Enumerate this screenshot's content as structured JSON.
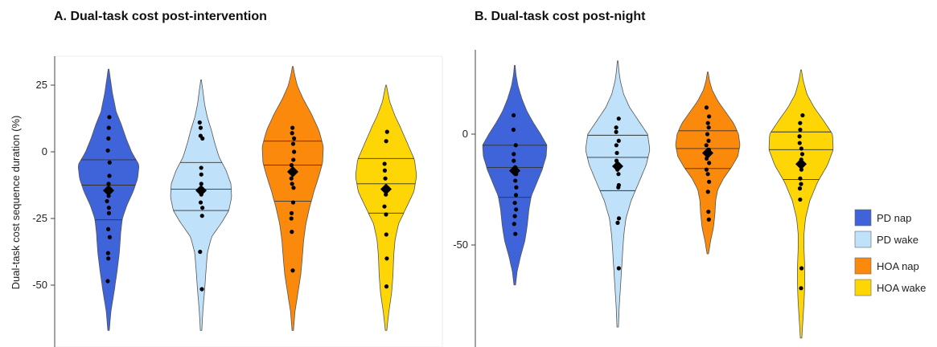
{
  "chart_data": [
    {
      "type": "violin",
      "title": "A. Dual-task cost post-intervention",
      "ylabel": "Dual-task cost sequence duration  (%)",
      "xlabel": "",
      "ylim": [
        -68,
        35
      ],
      "yticks": [
        25,
        0,
        -25,
        -50
      ],
      "grid": false,
      "groups": [
        {
          "name": "PD nap",
          "color": "#3f63d8",
          "q1": -25.5,
          "median": -12.5,
          "q3": -3,
          "mean": -14.5,
          "range": [
            -67,
            31
          ],
          "density": [
            [
              -67,
              0.02
            ],
            [
              -60,
              0.06
            ],
            [
              -52,
              0.15
            ],
            [
              -45,
              0.22
            ],
            [
              -38,
              0.28
            ],
            [
              -30,
              0.32
            ],
            [
              -25,
              0.36
            ],
            [
              -20,
              0.48
            ],
            [
              -15,
              0.64
            ],
            [
              -10,
              0.76
            ],
            [
              -5,
              0.8
            ],
            [
              0,
              0.6
            ],
            [
              5,
              0.46
            ],
            [
              10,
              0.34
            ],
            [
              15,
              0.2
            ],
            [
              22,
              0.1
            ],
            [
              28,
              0.04
            ],
            [
              31,
              0.01
            ]
          ],
          "points": [
            13,
            9,
            5,
            0.5,
            -4,
            -9,
            -12,
            -14,
            -16.5,
            -18.5,
            -21,
            -23,
            -29,
            -32,
            -38,
            -40,
            -48.5
          ]
        },
        {
          "name": "PD wake",
          "color": "#bfe2fa",
          "q1": -22,
          "median": -14,
          "q3": -4,
          "mean": -14.5,
          "range": [
            -67,
            27
          ],
          "density": [
            [
              -67,
              0.02
            ],
            [
              -60,
              0.05
            ],
            [
              -52,
              0.1
            ],
            [
              -45,
              0.14
            ],
            [
              -38,
              0.18
            ],
            [
              -32,
              0.3
            ],
            [
              -26,
              0.62
            ],
            [
              -22,
              0.8
            ],
            [
              -17,
              0.88
            ],
            [
              -12,
              0.86
            ],
            [
              -7,
              0.72
            ],
            [
              -2,
              0.52
            ],
            [
              3,
              0.4
            ],
            [
              8,
              0.3
            ],
            [
              13,
              0.18
            ],
            [
              18,
              0.1
            ],
            [
              23,
              0.05
            ],
            [
              27,
              0.01
            ]
          ],
          "points": [
            11,
            9,
            6,
            5,
            -6,
            -8.5,
            -12,
            -14,
            -16,
            -19,
            -21,
            -24,
            -37.5,
            -51.5
          ]
        },
        {
          "name": "HOA nap",
          "color": "#fb8a0c",
          "q1": -18.5,
          "median": -5,
          "q3": 4,
          "mean": -7.5,
          "range": [
            -67,
            32
          ],
          "density": [
            [
              -67,
              0.02
            ],
            [
              -60,
              0.06
            ],
            [
              -53,
              0.14
            ],
            [
              -46,
              0.22
            ],
            [
              -40,
              0.26
            ],
            [
              -33,
              0.3
            ],
            [
              -27,
              0.36
            ],
            [
              -21,
              0.46
            ],
            [
              -15,
              0.58
            ],
            [
              -9,
              0.72
            ],
            [
              -4,
              0.82
            ],
            [
              2,
              0.84
            ],
            [
              8,
              0.72
            ],
            [
              14,
              0.52
            ],
            [
              20,
              0.28
            ],
            [
              25,
              0.12
            ],
            [
              29,
              0.05
            ],
            [
              32,
              0.01
            ]
          ],
          "points": [
            9,
            7,
            5,
            3,
            0,
            -3,
            -5,
            -7,
            -10,
            -12,
            -13.5,
            -19,
            -23,
            -25,
            -30,
            -44.5
          ]
        },
        {
          "name": "HOA wake",
          "color": "#fed605",
          "q1": -23,
          "median": -12,
          "q3": -2.5,
          "mean": -14,
          "range": [
            -67,
            25
          ],
          "density": [
            [
              -67,
              0.02
            ],
            [
              -60,
              0.08
            ],
            [
              -53,
              0.16
            ],
            [
              -46,
              0.2
            ],
            [
              -39,
              0.22
            ],
            [
              -33,
              0.26
            ],
            [
              -27,
              0.36
            ],
            [
              -21,
              0.58
            ],
            [
              -15,
              0.8
            ],
            [
              -9,
              0.88
            ],
            [
              -3,
              0.82
            ],
            [
              3,
              0.62
            ],
            [
              9,
              0.42
            ],
            [
              14,
              0.24
            ],
            [
              19,
              0.1
            ],
            [
              23,
              0.04
            ],
            [
              25,
              0.01
            ]
          ],
          "points": [
            7.5,
            4,
            -4.5,
            -7,
            -10,
            -13.5,
            -16,
            -20.5,
            -23.5,
            -31,
            -40,
            -50.5
          ]
        }
      ]
    },
    {
      "type": "violin",
      "title": "B. Dual-task cost post-night",
      "ylabel": "",
      "xlabel": "",
      "ylim": [
        -95,
        40
      ],
      "yticks": [
        0,
        -50
      ],
      "grid": false,
      "groups": [
        {
          "name": "PD nap",
          "color": "#3f63d8",
          "q1": -28.5,
          "median": -15,
          "q3": -5,
          "mean": -16.5,
          "range": [
            -68,
            31
          ],
          "density": [
            [
              -68,
              0.02
            ],
            [
              -62,
              0.06
            ],
            [
              -55,
              0.15
            ],
            [
              -48,
              0.26
            ],
            [
              -41,
              0.32
            ],
            [
              -34,
              0.36
            ],
            [
              -28,
              0.42
            ],
            [
              -22,
              0.56
            ],
            [
              -16,
              0.7
            ],
            [
              -10,
              0.8
            ],
            [
              -5,
              0.82
            ],
            [
              0,
              0.66
            ],
            [
              5,
              0.48
            ],
            [
              10,
              0.32
            ],
            [
              16,
              0.18
            ],
            [
              22,
              0.08
            ],
            [
              27,
              0.03
            ],
            [
              31,
              0.01
            ]
          ],
          "points": [
            8.5,
            2,
            -5,
            -9,
            -12,
            -15,
            -18,
            -21,
            -24,
            -27.5,
            -31,
            -34,
            -37,
            -40.5,
            -45
          ]
        },
        {
          "name": "PD wake",
          "color": "#bfe2fa",
          "q1": -25.5,
          "median": -10.5,
          "q3": -0.5,
          "mean": -14.5,
          "range": [
            -87,
            33
          ],
          "density": [
            [
              -87,
              0.02
            ],
            [
              -78,
              0.04
            ],
            [
              -70,
              0.07
            ],
            [
              -62,
              0.1
            ],
            [
              -54,
              0.13
            ],
            [
              -46,
              0.16
            ],
            [
              -38,
              0.22
            ],
            [
              -30,
              0.36
            ],
            [
              -22,
              0.56
            ],
            [
              -14,
              0.76
            ],
            [
              -7,
              0.86
            ],
            [
              0,
              0.8
            ],
            [
              6,
              0.56
            ],
            [
              12,
              0.32
            ],
            [
              18,
              0.16
            ],
            [
              24,
              0.07
            ],
            [
              29,
              0.03
            ],
            [
              33,
              0.01
            ]
          ],
          "points": [
            7,
            3,
            1,
            -3,
            -5,
            -8.5,
            -12,
            -14,
            -16,
            -18,
            -23,
            -24,
            -38,
            -40,
            -60.5
          ]
        },
        {
          "name": "HOA nap",
          "color": "#fb8a0c",
          "q1": -15.5,
          "median": -6.5,
          "q3": 1.5,
          "mean": -8.5,
          "range": [
            -54,
            28
          ],
          "density": [
            [
              -54,
              0.02
            ],
            [
              -48,
              0.08
            ],
            [
              -42,
              0.16
            ],
            [
              -36,
              0.2
            ],
            [
              -30,
              0.22
            ],
            [
              -25,
              0.28
            ],
            [
              -20,
              0.44
            ],
            [
              -15,
              0.66
            ],
            [
              -10,
              0.84
            ],
            [
              -5,
              0.9
            ],
            [
              0,
              0.86
            ],
            [
              5,
              0.72
            ],
            [
              10,
              0.5
            ],
            [
              15,
              0.28
            ],
            [
              20,
              0.12
            ],
            [
              24,
              0.05
            ],
            [
              28,
              0.01
            ]
          ],
          "points": [
            12,
            8,
            5,
            3,
            0,
            -3,
            -5,
            -7,
            -9,
            -11,
            -13,
            -16,
            -18,
            -21.5,
            -26,
            -35,
            -38.5
          ]
        },
        {
          "name": "HOA wake",
          "color": "#fed605",
          "q1": -20.5,
          "median": -7,
          "q3": 1,
          "mean": -13.5,
          "range": [
            -92,
            29
          ],
          "density": [
            [
              -92,
              0.02
            ],
            [
              -84,
              0.05
            ],
            [
              -76,
              0.08
            ],
            [
              -68,
              0.1
            ],
            [
              -60,
              0.1
            ],
            [
              -52,
              0.08
            ],
            [
              -45,
              0.08
            ],
            [
              -38,
              0.12
            ],
            [
              -30,
              0.24
            ],
            [
              -22,
              0.44
            ],
            [
              -14,
              0.72
            ],
            [
              -7,
              0.88
            ],
            [
              0,
              0.86
            ],
            [
              6,
              0.62
            ],
            [
              12,
              0.36
            ],
            [
              18,
              0.16
            ],
            [
              24,
              0.06
            ],
            [
              29,
              0.01
            ]
          ],
          "points": [
            8.5,
            5,
            2,
            -1,
            -4,
            -6.5,
            -9,
            -11.5,
            -14,
            -16,
            -20,
            -22.5,
            -24.5,
            -29.5,
            -60.5,
            -69.5
          ]
        }
      ]
    }
  ],
  "legend": {
    "placement": "right",
    "items": [
      {
        "label": "PD nap",
        "color": "#3f63d8"
      },
      {
        "label": "PD wake",
        "color": "#bfe2fa"
      },
      {
        "label": "HOA nap",
        "color": "#fb8a0c"
      },
      {
        "label": "HOA wake",
        "color": "#fed605"
      }
    ]
  }
}
